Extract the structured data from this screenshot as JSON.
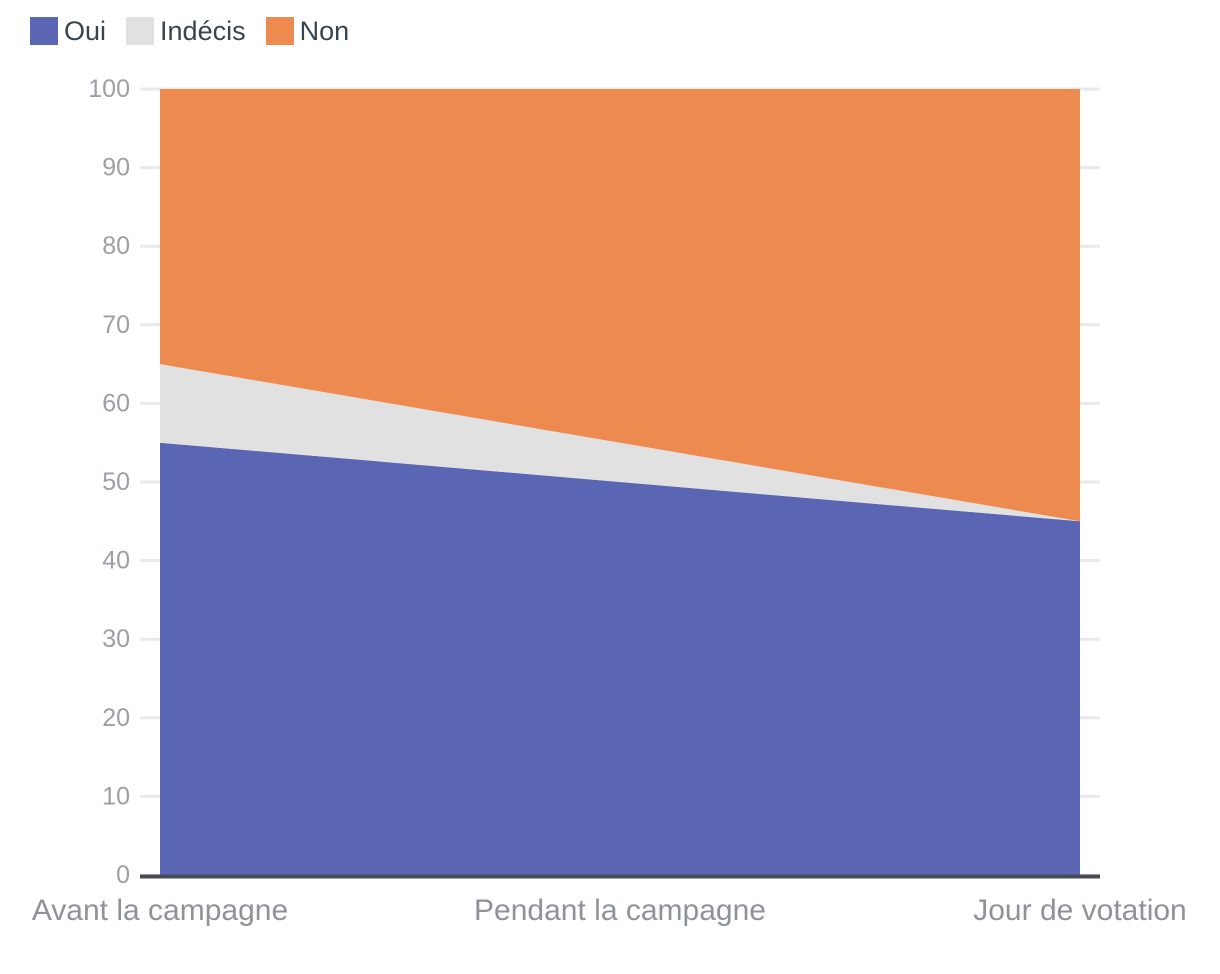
{
  "chart_data": {
    "type": "area",
    "stacked": true,
    "stack_total": 100,
    "title": "",
    "xlabel": "",
    "ylabel": "",
    "categories": [
      "Avant la campagne",
      "Pendant la campagne",
      "Jour de votation"
    ],
    "series": [
      {
        "name": "Oui",
        "values": [
          55,
          50,
          45
        ],
        "color": "#5a66b4"
      },
      {
        "name": "Indécis",
        "values": [
          10,
          5,
          0
        ],
        "color": "#e1e1e1"
      },
      {
        "name": "Non",
        "values": [
          35,
          45,
          55
        ],
        "color": "#ec8a50"
      }
    ],
    "ylim": [
      0,
      100
    ],
    "y_ticks": [
      0,
      10,
      20,
      30,
      40,
      50,
      60,
      70,
      80,
      90,
      100
    ],
    "grid": true,
    "legend_position": "top-left"
  },
  "legend": {
    "items": [
      {
        "label": "Oui",
        "color": "#5a66b4"
      },
      {
        "label": "Indécis",
        "color": "#e1e1e1"
      },
      {
        "label": "Non",
        "color": "#ec8a50"
      }
    ]
  },
  "colors": {
    "background": "#ffffff",
    "legend_text": "#36454f",
    "grid_line": "#e9e9e9",
    "axis_baseline": "#454b54",
    "y_tick_label": "#9aa0a8",
    "x_tick_label": "#8c939c"
  }
}
